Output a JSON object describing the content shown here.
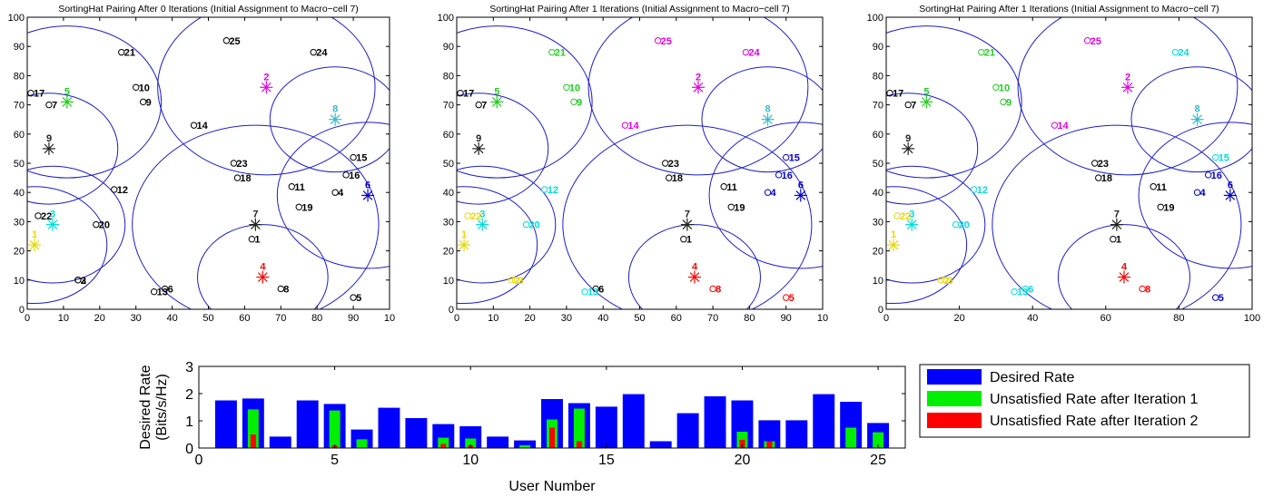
{
  "colors": {
    "circle": "#1c1ccc",
    "axis": "#000000",
    "desired": "#0000ff",
    "unsat1": "#00ee00",
    "unsat2": "#ff0000"
  },
  "chart_data": [
    {
      "type": "scatter",
      "title": "SortingHat Pairing After 0 Iterations (Initial Assignment to Macro−cell 7)",
      "xlim": [
        0,
        100
      ],
      "ylim": [
        0,
        100
      ],
      "xticks": [
        "0",
        "10",
        "20",
        "30",
        "40",
        "50",
        "60",
        "70",
        "80",
        "90",
        "10"
      ],
      "yticks": [
        "0",
        "10",
        "20",
        "30",
        "40",
        "50",
        "60",
        "70",
        "80",
        "90",
        "100"
      ],
      "cells": [
        {
          "id": "1",
          "x": 2,
          "y": 22,
          "r": 20,
          "color": "#e8d800"
        },
        {
          "id": "2",
          "x": 66,
          "y": 76,
          "r": 30,
          "color": "#e000e0"
        },
        {
          "id": "3",
          "x": 7,
          "y": 29,
          "r": 20,
          "color": "#00dddd"
        },
        {
          "id": "4",
          "x": 65,
          "y": 11,
          "r": 18,
          "color": "#ff0000"
        },
        {
          "id": "5",
          "x": 11,
          "y": 71,
          "r": 26,
          "color": "#22cc22"
        },
        {
          "id": "6",
          "x": 94,
          "y": 39,
          "r": 25,
          "color": "#0000cc"
        },
        {
          "id": "7",
          "x": 63,
          "y": 29,
          "r": 34,
          "color": "#222222"
        },
        {
          "id": "8",
          "x": 85,
          "y": 65,
          "r": 18,
          "color": "#33bbcc"
        },
        {
          "id": "9",
          "x": 6,
          "y": 55,
          "r": 19,
          "color": "#222222"
        }
      ],
      "users": [
        {
          "id": "1",
          "x": 62,
          "y": 24,
          "color": "#000000"
        },
        {
          "id": "2",
          "x": 14,
          "y": 10,
          "color": "#000000"
        },
        {
          "id": "3",
          "x": 14,
          "y": 10,
          "color": "#000000"
        },
        {
          "id": "4",
          "x": 85,
          "y": 40,
          "color": "#000000"
        },
        {
          "id": "5",
          "x": 90,
          "y": 4,
          "color": "#000000"
        },
        {
          "id": "6",
          "x": 38,
          "y": 7,
          "color": "#000000"
        },
        {
          "id": "7",
          "x": 6,
          "y": 70,
          "color": "#000000"
        },
        {
          "id": "8",
          "x": 70,
          "y": 7,
          "color": "#000000"
        },
        {
          "id": "9",
          "x": 32,
          "y": 71,
          "color": "#000000"
        },
        {
          "id": "10",
          "x": 30,
          "y": 76,
          "color": "#000000"
        },
        {
          "id": "11",
          "x": 73,
          "y": 42,
          "color": "#000000"
        },
        {
          "id": "12",
          "x": 24,
          "y": 41,
          "color": "#000000"
        },
        {
          "id": "13",
          "x": 35,
          "y": 6,
          "color": "#000000"
        },
        {
          "id": "14",
          "x": 46,
          "y": 63,
          "color": "#000000"
        },
        {
          "id": "15",
          "x": 90,
          "y": 52,
          "color": "#000000"
        },
        {
          "id": "16",
          "x": 88,
          "y": 46,
          "color": "#000000"
        },
        {
          "id": "17",
          "x": 1,
          "y": 74,
          "color": "#000000"
        },
        {
          "id": "18",
          "x": 58,
          "y": 45,
          "color": "#000000"
        },
        {
          "id": "19",
          "x": 75,
          "y": 35,
          "color": "#000000"
        },
        {
          "id": "20",
          "x": 19,
          "y": 29,
          "color": "#000000"
        },
        {
          "id": "21",
          "x": 26,
          "y": 88,
          "color": "#000000"
        },
        {
          "id": "22",
          "x": 3,
          "y": 32,
          "color": "#000000"
        },
        {
          "id": "23",
          "x": 57,
          "y": 50,
          "color": "#000000"
        },
        {
          "id": "24",
          "x": 79,
          "y": 88,
          "color": "#000000"
        },
        {
          "id": "25",
          "x": 55,
          "y": 92,
          "color": "#000000"
        }
      ]
    },
    {
      "type": "scatter",
      "title": "SortingHat Pairing After 1 Iterations (Initial Assignment to Macro−cell 7)",
      "xlim": [
        0,
        100
      ],
      "ylim": [
        0,
        100
      ],
      "xticks": [
        "0",
        "10",
        "20",
        "30",
        "40",
        "50",
        "60",
        "70",
        "80",
        "90",
        "10"
      ],
      "yticks": [
        "0",
        "10",
        "20",
        "30",
        "40",
        "50",
        "60",
        "70",
        "80",
        "90",
        "100"
      ],
      "cells": [
        {
          "id": "1",
          "x": 2,
          "y": 22,
          "r": 20,
          "color": "#e8d800"
        },
        {
          "id": "2",
          "x": 66,
          "y": 76,
          "r": 30,
          "color": "#e000e0"
        },
        {
          "id": "3",
          "x": 7,
          "y": 29,
          "r": 20,
          "color": "#00dddd"
        },
        {
          "id": "4",
          "x": 65,
          "y": 11,
          "r": 18,
          "color": "#ff0000"
        },
        {
          "id": "5",
          "x": 11,
          "y": 71,
          "r": 26,
          "color": "#22cc22"
        },
        {
          "id": "6",
          "x": 94,
          "y": 39,
          "r": 25,
          "color": "#0000cc"
        },
        {
          "id": "7",
          "x": 63,
          "y": 29,
          "r": 34,
          "color": "#222222"
        },
        {
          "id": "8",
          "x": 85,
          "y": 65,
          "r": 18,
          "color": "#33bbcc"
        },
        {
          "id": "9",
          "x": 6,
          "y": 55,
          "r": 19,
          "color": "#222222"
        }
      ],
      "users": [
        {
          "id": "1",
          "x": 62,
          "y": 24,
          "color": "#000000"
        },
        {
          "id": "2",
          "x": 15,
          "y": 10,
          "color": "#e8d800"
        },
        {
          "id": "3",
          "x": 16,
          "y": 10,
          "color": "#e8d800"
        },
        {
          "id": "4",
          "x": 85,
          "y": 40,
          "color": "#0000cc"
        },
        {
          "id": "5",
          "x": 90,
          "y": 4,
          "color": "#ff0000"
        },
        {
          "id": "6",
          "x": 38,
          "y": 7,
          "color": "#000000"
        },
        {
          "id": "7",
          "x": 6,
          "y": 70,
          "color": "#000000"
        },
        {
          "id": "8",
          "x": 70,
          "y": 7,
          "color": "#ff0000"
        },
        {
          "id": "9",
          "x": 32,
          "y": 71,
          "color": "#22cc22"
        },
        {
          "id": "10",
          "x": 30,
          "y": 76,
          "color": "#22cc22"
        },
        {
          "id": "11",
          "x": 73,
          "y": 42,
          "color": "#000000"
        },
        {
          "id": "12",
          "x": 24,
          "y": 41,
          "color": "#00dddd"
        },
        {
          "id": "13",
          "x": 35,
          "y": 6,
          "color": "#00dddd"
        },
        {
          "id": "14",
          "x": 46,
          "y": 63,
          "color": "#e000e0"
        },
        {
          "id": "15",
          "x": 90,
          "y": 52,
          "color": "#0000cc"
        },
        {
          "id": "16",
          "x": 88,
          "y": 46,
          "color": "#0000cc"
        },
        {
          "id": "17",
          "x": 1,
          "y": 74,
          "color": "#000000"
        },
        {
          "id": "18",
          "x": 58,
          "y": 45,
          "color": "#000000"
        },
        {
          "id": "19",
          "x": 75,
          "y": 35,
          "color": "#000000"
        },
        {
          "id": "20",
          "x": 19,
          "y": 29,
          "color": "#00dddd"
        },
        {
          "id": "21",
          "x": 26,
          "y": 88,
          "color": "#22cc22"
        },
        {
          "id": "22",
          "x": 3,
          "y": 32,
          "color": "#e8d800"
        },
        {
          "id": "23",
          "x": 57,
          "y": 50,
          "color": "#000000"
        },
        {
          "id": "24",
          "x": 79,
          "y": 88,
          "color": "#e000e0"
        },
        {
          "id": "25",
          "x": 55,
          "y": 92,
          "color": "#e000e0"
        }
      ]
    },
    {
      "type": "scatter",
      "title": "SortingHat Pairing After 1 Iterations (Initial Assignment to Macro−cell 7)",
      "xlim": [
        0,
        100
      ],
      "ylim": [
        0,
        100
      ],
      "xticks": [
        "0",
        "20",
        "40",
        "60",
        "80",
        "100"
      ],
      "yticks": [
        "0",
        "10",
        "20",
        "30",
        "40",
        "50",
        "60",
        "70",
        "80",
        "90",
        "100"
      ],
      "cells": [
        {
          "id": "1",
          "x": 2,
          "y": 22,
          "r": 20,
          "color": "#e8d800"
        },
        {
          "id": "2",
          "x": 66,
          "y": 76,
          "r": 30,
          "color": "#e000e0"
        },
        {
          "id": "3",
          "x": 7,
          "y": 29,
          "r": 20,
          "color": "#00dddd"
        },
        {
          "id": "4",
          "x": 65,
          "y": 11,
          "r": 18,
          "color": "#ff0000"
        },
        {
          "id": "5",
          "x": 11,
          "y": 71,
          "r": 26,
          "color": "#22cc22"
        },
        {
          "id": "6",
          "x": 94,
          "y": 39,
          "r": 25,
          "color": "#0000cc"
        },
        {
          "id": "7",
          "x": 63,
          "y": 29,
          "r": 34,
          "color": "#222222"
        },
        {
          "id": "8",
          "x": 85,
          "y": 65,
          "r": 18,
          "color": "#33bbcc"
        },
        {
          "id": "9",
          "x": 6,
          "y": 55,
          "r": 19,
          "color": "#222222"
        }
      ],
      "users": [
        {
          "id": "1",
          "x": 62,
          "y": 24,
          "color": "#000000"
        },
        {
          "id": "2",
          "x": 15,
          "y": 10,
          "color": "#e8d800"
        },
        {
          "id": "3",
          "x": 16,
          "y": 10,
          "color": "#e8d800"
        },
        {
          "id": "4",
          "x": 85,
          "y": 40,
          "color": "#0000cc"
        },
        {
          "id": "5",
          "x": 90,
          "y": 4,
          "color": "#0000cc"
        },
        {
          "id": "6",
          "x": 38,
          "y": 7,
          "color": "#00dddd"
        },
        {
          "id": "7",
          "x": 6,
          "y": 70,
          "color": "#000000"
        },
        {
          "id": "8",
          "x": 70,
          "y": 7,
          "color": "#ff0000"
        },
        {
          "id": "9",
          "x": 32,
          "y": 71,
          "color": "#22cc22"
        },
        {
          "id": "10",
          "x": 30,
          "y": 76,
          "color": "#22cc22"
        },
        {
          "id": "11",
          "x": 73,
          "y": 42,
          "color": "#000000"
        },
        {
          "id": "12",
          "x": 24,
          "y": 41,
          "color": "#00dddd"
        },
        {
          "id": "13",
          "x": 35,
          "y": 6,
          "color": "#00dddd"
        },
        {
          "id": "14",
          "x": 46,
          "y": 63,
          "color": "#e000e0"
        },
        {
          "id": "15",
          "x": 90,
          "y": 52,
          "color": "#00dddd"
        },
        {
          "id": "16",
          "x": 88,
          "y": 46,
          "color": "#0000cc"
        },
        {
          "id": "17",
          "x": 1,
          "y": 74,
          "color": "#000000"
        },
        {
          "id": "18",
          "x": 58,
          "y": 45,
          "color": "#000000"
        },
        {
          "id": "19",
          "x": 75,
          "y": 35,
          "color": "#000000"
        },
        {
          "id": "20",
          "x": 19,
          "y": 29,
          "color": "#00dddd"
        },
        {
          "id": "21",
          "x": 26,
          "y": 88,
          "color": "#22cc22"
        },
        {
          "id": "22",
          "x": 3,
          "y": 32,
          "color": "#e8d800"
        },
        {
          "id": "23",
          "x": 57,
          "y": 50,
          "color": "#000000"
        },
        {
          "id": "24",
          "x": 79,
          "y": 88,
          "color": "#00dddd"
        },
        {
          "id": "25",
          "x": 55,
          "y": 92,
          "color": "#e000e0"
        }
      ]
    },
    {
      "type": "bar",
      "xlabel": "User Number",
      "ylabel": "Desired Rate\n(Bits/s/Hz)",
      "xlim": [
        0,
        26
      ],
      "ylim": [
        0,
        3
      ],
      "xticks": [
        "0",
        "5",
        "10",
        "15",
        "20",
        "25"
      ],
      "yticks": [
        "0",
        "1",
        "2",
        "3"
      ],
      "legend_position": "right",
      "categories": [
        1,
        2,
        3,
        4,
        5,
        6,
        7,
        8,
        9,
        10,
        11,
        12,
        13,
        14,
        15,
        16,
        17,
        18,
        19,
        20,
        21,
        22,
        23,
        24,
        25
      ],
      "series": [
        {
          "name": "Desired Rate",
          "color": "#0000ff",
          "values": [
            1.75,
            1.82,
            0.42,
            1.75,
            1.62,
            0.68,
            1.48,
            1.1,
            0.88,
            0.8,
            0.42,
            0.28,
            1.8,
            1.65,
            1.52,
            1.98,
            0.25,
            1.28,
            1.9,
            1.75,
            1.02,
            1.02,
            1.98,
            1.7,
            0.92
          ]
        },
        {
          "name": "Unsatisfied Rate after Iteration 1",
          "color": "#00ee00",
          "values": [
            0,
            1.42,
            0,
            0,
            1.38,
            0.32,
            0,
            0,
            0.38,
            0.35,
            0,
            0.1,
            1.05,
            1.45,
            0,
            0,
            0,
            0,
            0,
            0.6,
            0.25,
            0,
            0,
            0.75,
            0.58
          ]
        },
        {
          "name": "Unsatisfied Rate after Iteration 2",
          "color": "#ff0000",
          "values": [
            0,
            0.5,
            0,
            0,
            0.1,
            0,
            0,
            0,
            0.15,
            0.1,
            0,
            0,
            0.75,
            0.25,
            0,
            0,
            0,
            0,
            0,
            0.3,
            0.25,
            0,
            0,
            0,
            0
          ]
        }
      ]
    }
  ]
}
